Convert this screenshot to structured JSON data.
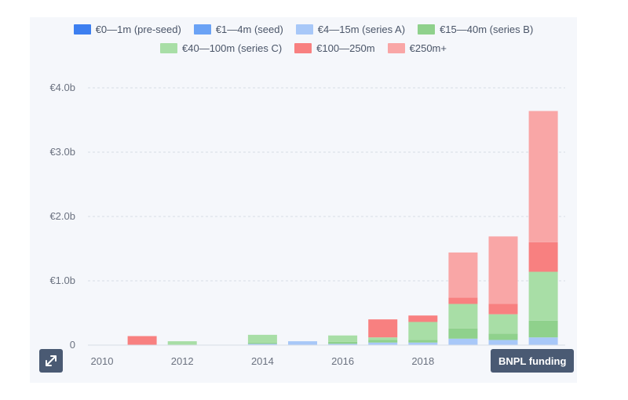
{
  "chart_data": {
    "type": "bar",
    "stacked": true,
    "categories": [
      "2010",
      "2011",
      "2012",
      "2013",
      "2014",
      "2015",
      "2016",
      "2017",
      "2018",
      "2019",
      "2020",
      "2021"
    ],
    "x_tick_labels": [
      "2010",
      "2012",
      "2014",
      "2016",
      "2018"
    ],
    "y_ticks": [
      "0",
      "€1.0b",
      "€2.0b",
      "€3.0b",
      "€4.0b"
    ],
    "ylim": [
      0,
      4.0
    ],
    "grid": true,
    "legend_position": "top",
    "series": [
      {
        "name": "€0—1m (pre-seed)",
        "color": "#3d7ff0",
        "values": [
          0,
          0,
          0,
          0,
          0,
          0,
          0,
          0,
          0,
          0,
          0,
          0
        ]
      },
      {
        "name": "€1—4m (seed)",
        "color": "#6aa2f5",
        "values": [
          0,
          0,
          0,
          0,
          0,
          0,
          0,
          0,
          0,
          0,
          0,
          0
        ]
      },
      {
        "name": "€4—15m (series A)",
        "color": "#a8c8f8",
        "values": [
          0,
          0,
          0,
          0,
          0.02,
          0.06,
          0.02,
          0.04,
          0.04,
          0.1,
          0.08,
          0.12
        ]
      },
      {
        "name": "€15—40m (series B)",
        "color": "#8fd18c",
        "values": [
          0,
          0,
          0,
          0,
          0.02,
          0,
          0.03,
          0.04,
          0.04,
          0.16,
          0.1,
          0.26
        ]
      },
      {
        "name": "€40—100m (series C)",
        "color": "#a8dea6",
        "values": [
          0,
          0,
          0.06,
          0,
          0.12,
          0,
          0.1,
          0.04,
          0.28,
          0.38,
          0.3,
          0.76
        ]
      },
      {
        "name": "€100—250m",
        "color": "#f88080",
        "values": [
          0,
          0.14,
          0,
          0,
          0,
          0,
          0,
          0.28,
          0.1,
          0.1,
          0.16,
          0.46
        ]
      },
      {
        "name": "€250m+",
        "color": "#f9a6a6",
        "values": [
          0,
          0,
          0,
          0,
          0,
          0,
          0,
          0,
          0,
          0.7,
          1.05,
          2.04
        ]
      }
    ]
  },
  "controls": {
    "source_label": "BNPL funding",
    "expand_icon": "expand-icon"
  }
}
